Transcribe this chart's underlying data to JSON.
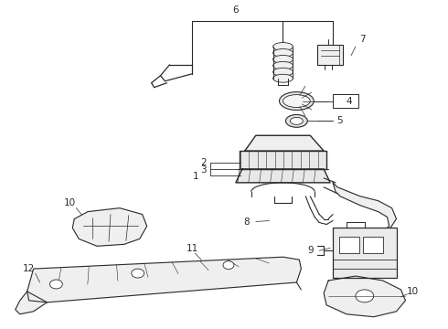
{
  "bg_color": "#ffffff",
  "line_color": "#2a2a2a",
  "fig_width": 4.9,
  "fig_height": 3.6,
  "dpi": 100,
  "label_fs": 7.5
}
